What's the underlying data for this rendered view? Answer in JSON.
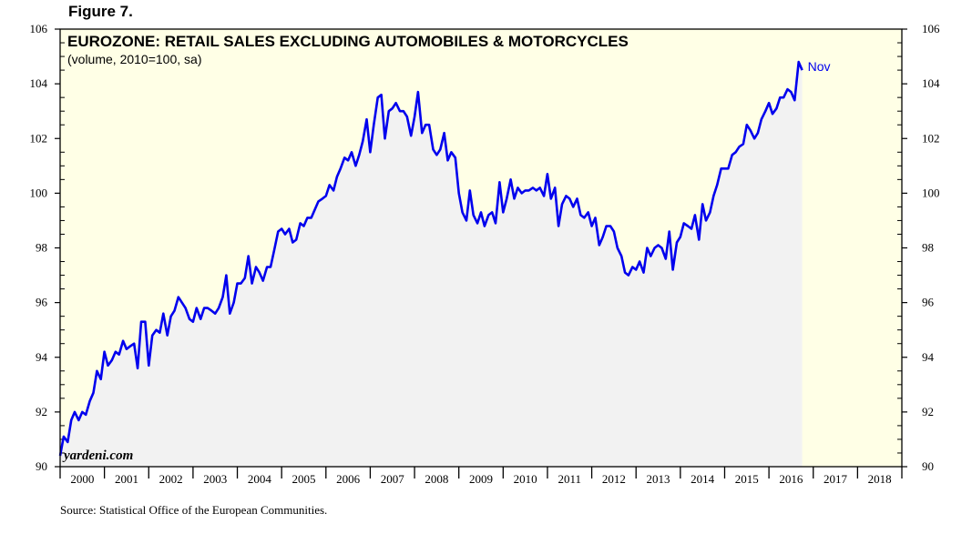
{
  "figure_label": "Figure 7.",
  "source": "Source: Statistical Office of the European Communities.",
  "watermark": "yardeni.com",
  "chart_data": {
    "type": "line",
    "title": "EUROZONE: RETAIL SALES EXCLUDING AUTOMOBILES & MOTORCYCLES",
    "subtitle": "(volume, 2010=100, sa)",
    "xlabel": "",
    "ylabel": "",
    "ylim": [
      90,
      106
    ],
    "xlim": [
      2000,
      2019
    ],
    "y_ticks": [
      90,
      92,
      94,
      96,
      98,
      100,
      102,
      104,
      106
    ],
    "y_tick_labels": [
      "90",
      "92",
      "94",
      "96",
      "98",
      "100",
      "102",
      "104",
      "106"
    ],
    "x_tick_labels": [
      "2000",
      "2001",
      "2002",
      "2003",
      "2004",
      "2005",
      "2006",
      "2007",
      "2008",
      "2009",
      "2010",
      "2011",
      "2012",
      "2013",
      "2014",
      "2015",
      "2016",
      "2017",
      "2018"
    ],
    "last_label": "Nov",
    "forecast_shade_start": 2016.92,
    "colors": {
      "line": "#0000ee",
      "plot_bg": "#ffffe6",
      "fill": "#f2f2f2"
    },
    "series": [
      {
        "name": "Retail sales excluding automobiles & motorcycles",
        "points": [
          [
            2000.0,
            90.4
          ],
          [
            2000.08,
            91.1
          ],
          [
            2000.17,
            90.9
          ],
          [
            2000.25,
            91.7
          ],
          [
            2000.33,
            92.0
          ],
          [
            2000.42,
            91.7
          ],
          [
            2000.5,
            92.0
          ],
          [
            2000.58,
            91.9
          ],
          [
            2000.67,
            92.4
          ],
          [
            2000.75,
            92.7
          ],
          [
            2000.83,
            93.5
          ],
          [
            2000.92,
            93.2
          ],
          [
            2001.0,
            94.2
          ],
          [
            2001.08,
            93.7
          ],
          [
            2001.17,
            93.9
          ],
          [
            2001.25,
            94.2
          ],
          [
            2001.33,
            94.1
          ],
          [
            2001.42,
            94.6
          ],
          [
            2001.5,
            94.3
          ],
          [
            2001.58,
            94.4
          ],
          [
            2001.67,
            94.5
          ],
          [
            2001.75,
            93.6
          ],
          [
            2001.83,
            95.3
          ],
          [
            2001.92,
            95.3
          ],
          [
            2002.0,
            93.7
          ],
          [
            2002.08,
            94.8
          ],
          [
            2002.17,
            95.0
          ],
          [
            2002.25,
            94.9
          ],
          [
            2002.33,
            95.6
          ],
          [
            2002.42,
            94.8
          ],
          [
            2002.5,
            95.5
          ],
          [
            2002.58,
            95.7
          ],
          [
            2002.67,
            96.2
          ],
          [
            2002.75,
            96.0
          ],
          [
            2002.83,
            95.8
          ],
          [
            2002.92,
            95.4
          ],
          [
            2003.0,
            95.3
          ],
          [
            2003.08,
            95.8
          ],
          [
            2003.17,
            95.4
          ],
          [
            2003.25,
            95.8
          ],
          [
            2003.33,
            95.8
          ],
          [
            2003.42,
            95.7
          ],
          [
            2003.5,
            95.6
          ],
          [
            2003.58,
            95.8
          ],
          [
            2003.67,
            96.2
          ],
          [
            2003.75,
            97.0
          ],
          [
            2003.83,
            95.6
          ],
          [
            2003.92,
            96.0
          ],
          [
            2004.0,
            96.7
          ],
          [
            2004.08,
            96.7
          ],
          [
            2004.17,
            96.9
          ],
          [
            2004.25,
            97.7
          ],
          [
            2004.33,
            96.7
          ],
          [
            2004.42,
            97.3
          ],
          [
            2004.5,
            97.1
          ],
          [
            2004.58,
            96.8
          ],
          [
            2004.67,
            97.3
          ],
          [
            2004.75,
            97.3
          ],
          [
            2004.83,
            97.9
          ],
          [
            2004.92,
            98.6
          ],
          [
            2005.0,
            98.7
          ],
          [
            2005.08,
            98.5
          ],
          [
            2005.17,
            98.7
          ],
          [
            2005.25,
            98.2
          ],
          [
            2005.33,
            98.3
          ],
          [
            2005.42,
            98.9
          ],
          [
            2005.5,
            98.8
          ],
          [
            2005.58,
            99.1
          ],
          [
            2005.67,
            99.1
          ],
          [
            2005.75,
            99.4
          ],
          [
            2005.83,
            99.7
          ],
          [
            2005.92,
            99.8
          ],
          [
            2006.0,
            99.9
          ],
          [
            2006.08,
            100.3
          ],
          [
            2006.17,
            100.1
          ],
          [
            2006.25,
            100.6
          ],
          [
            2006.33,
            100.9
          ],
          [
            2006.42,
            101.3
          ],
          [
            2006.5,
            101.2
          ],
          [
            2006.58,
            101.5
          ],
          [
            2006.67,
            101.0
          ],
          [
            2006.75,
            101.4
          ],
          [
            2006.83,
            101.9
          ],
          [
            2006.92,
            102.7
          ],
          [
            2007.0,
            101.5
          ],
          [
            2007.08,
            102.5
          ],
          [
            2007.17,
            103.5
          ],
          [
            2007.25,
            103.6
          ],
          [
            2007.33,
            102.0
          ],
          [
            2007.42,
            103.0
          ],
          [
            2007.5,
            103.1
          ],
          [
            2007.58,
            103.3
          ],
          [
            2007.67,
            103.0
          ],
          [
            2007.75,
            103.0
          ],
          [
            2007.83,
            102.8
          ],
          [
            2007.92,
            102.1
          ],
          [
            2008.0,
            102.8
          ],
          [
            2008.08,
            103.7
          ],
          [
            2008.17,
            102.2
          ],
          [
            2008.25,
            102.5
          ],
          [
            2008.33,
            102.5
          ],
          [
            2008.42,
            101.6
          ],
          [
            2008.5,
            101.4
          ],
          [
            2008.58,
            101.6
          ],
          [
            2008.67,
            102.2
          ],
          [
            2008.75,
            101.2
          ],
          [
            2008.83,
            101.5
          ],
          [
            2008.92,
            101.3
          ],
          [
            2009.0,
            100.0
          ],
          [
            2009.08,
            99.3
          ],
          [
            2009.17,
            99.0
          ],
          [
            2009.25,
            100.1
          ],
          [
            2009.33,
            99.2
          ],
          [
            2009.42,
            98.9
          ],
          [
            2009.5,
            99.3
          ],
          [
            2009.58,
            98.8
          ],
          [
            2009.67,
            99.2
          ],
          [
            2009.75,
            99.3
          ],
          [
            2009.83,
            98.9
          ],
          [
            2009.92,
            100.4
          ],
          [
            2010.0,
            99.3
          ],
          [
            2010.08,
            99.8
          ],
          [
            2010.17,
            100.5
          ],
          [
            2010.25,
            99.8
          ],
          [
            2010.33,
            100.2
          ],
          [
            2010.42,
            100.0
          ],
          [
            2010.5,
            100.1
          ],
          [
            2010.58,
            100.1
          ],
          [
            2010.67,
            100.2
          ],
          [
            2010.75,
            100.1
          ],
          [
            2010.83,
            100.2
          ],
          [
            2010.92,
            99.9
          ],
          [
            2011.0,
            100.7
          ],
          [
            2011.08,
            99.8
          ],
          [
            2011.17,
            100.2
          ],
          [
            2011.25,
            98.8
          ],
          [
            2011.33,
            99.6
          ],
          [
            2011.42,
            99.9
          ],
          [
            2011.5,
            99.8
          ],
          [
            2011.58,
            99.5
          ],
          [
            2011.67,
            99.8
          ],
          [
            2011.75,
            99.2
          ],
          [
            2011.83,
            99.1
          ],
          [
            2011.92,
            99.3
          ],
          [
            2012.0,
            98.8
          ],
          [
            2012.08,
            99.1
          ],
          [
            2012.17,
            98.1
          ],
          [
            2012.25,
            98.4
          ],
          [
            2012.33,
            98.8
          ],
          [
            2012.42,
            98.8
          ],
          [
            2012.5,
            98.6
          ],
          [
            2012.58,
            98.0
          ],
          [
            2012.67,
            97.7
          ],
          [
            2012.75,
            97.1
          ],
          [
            2012.83,
            97.0
          ],
          [
            2012.92,
            97.3
          ],
          [
            2013.0,
            97.2
          ],
          [
            2013.08,
            97.5
          ],
          [
            2013.17,
            97.1
          ],
          [
            2013.25,
            98.0
          ],
          [
            2013.33,
            97.7
          ],
          [
            2013.42,
            98.0
          ],
          [
            2013.5,
            98.1
          ],
          [
            2013.58,
            98.0
          ],
          [
            2013.67,
            97.6
          ],
          [
            2013.75,
            98.6
          ],
          [
            2013.83,
            97.2
          ],
          [
            2013.92,
            98.2
          ],
          [
            2014.0,
            98.4
          ],
          [
            2014.08,
            98.9
          ],
          [
            2014.17,
            98.8
          ],
          [
            2014.25,
            98.7
          ],
          [
            2014.33,
            99.2
          ],
          [
            2014.42,
            98.3
          ],
          [
            2014.5,
            99.6
          ],
          [
            2014.58,
            99.0
          ],
          [
            2014.67,
            99.3
          ],
          [
            2014.75,
            99.9
          ],
          [
            2014.83,
            100.3
          ],
          [
            2014.92,
            100.9
          ],
          [
            2015.0,
            100.9
          ],
          [
            2015.08,
            100.9
          ],
          [
            2015.17,
            101.4
          ],
          [
            2015.25,
            101.5
          ],
          [
            2015.33,
            101.7
          ],
          [
            2015.42,
            101.8
          ],
          [
            2015.5,
            102.5
          ],
          [
            2015.58,
            102.3
          ],
          [
            2015.67,
            102.0
          ],
          [
            2015.75,
            102.2
          ],
          [
            2015.83,
            102.7
          ],
          [
            2015.92,
            103.0
          ],
          [
            2016.0,
            103.3
          ],
          [
            2016.08,
            102.9
          ],
          [
            2016.17,
            103.1
          ],
          [
            2016.25,
            103.5
          ],
          [
            2016.33,
            103.5
          ],
          [
            2016.42,
            103.8
          ],
          [
            2016.5,
            103.7
          ],
          [
            2016.58,
            103.4
          ],
          [
            2016.67,
            104.8
          ],
          [
            2016.75,
            104.5
          ]
        ]
      }
    ]
  }
}
